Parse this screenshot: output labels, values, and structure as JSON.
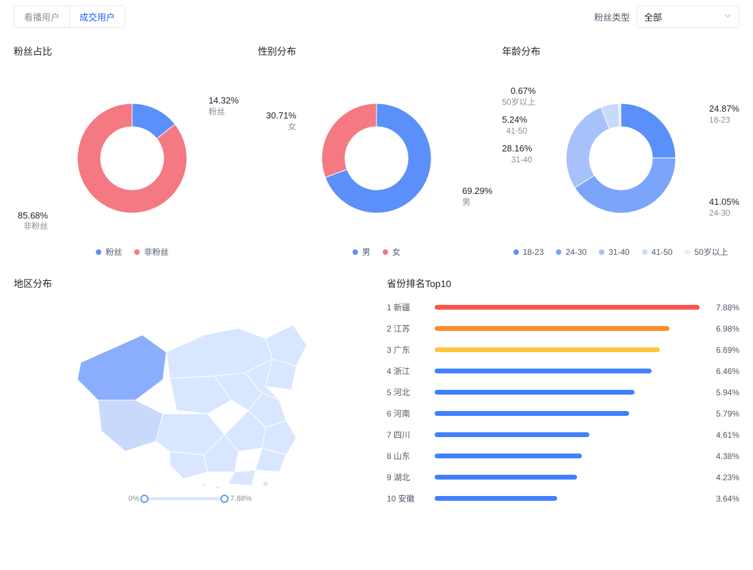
{
  "tabs": {
    "items": [
      "看播用户",
      "成交用户"
    ],
    "active_index": 1
  },
  "filter": {
    "label": "粉丝类型",
    "selected": "全部"
  },
  "fan_ratio": {
    "title": "粉丝占比",
    "inner": "#ffffff",
    "slices": [
      {
        "label": "粉丝",
        "pct": 14.32,
        "color": "#5b8ff9"
      },
      {
        "label": "非粉丝",
        "pct": 85.68,
        "color": "#f47983"
      }
    ],
    "legend": [
      "粉丝",
      "非粉丝"
    ],
    "legend_colors": [
      "#5b8ff9",
      "#f47983"
    ]
  },
  "gender": {
    "title": "性别分布",
    "slices": [
      {
        "label": "男",
        "pct": 69.29,
        "color": "#5b8ff9"
      },
      {
        "label": "女",
        "pct": 30.71,
        "color": "#f47983"
      }
    ],
    "legend": [
      "男",
      "女"
    ],
    "legend_colors": [
      "#5b8ff9",
      "#f47983"
    ]
  },
  "age": {
    "title": "年龄分布",
    "slices": [
      {
        "label": "18-23",
        "pct": 24.87,
        "color": "#5b8ff9"
      },
      {
        "label": "24-30",
        "pct": 41.05,
        "color": "#7ba4fa"
      },
      {
        "label": "31-40",
        "pct": 28.16,
        "color": "#a7c1fb"
      },
      {
        "label": "41-50",
        "pct": 5.24,
        "color": "#c9d9fc"
      },
      {
        "label": "50岁以上",
        "pct": 0.67,
        "color": "#e6edfe"
      }
    ],
    "legend": [
      "18-23",
      "24-30",
      "31-40",
      "41-50",
      "50岁以上"
    ],
    "legend_colors": [
      "#5b8ff9",
      "#7ba4fa",
      "#a7c1fb",
      "#c9d9fc",
      "#e6edfe"
    ]
  },
  "region": {
    "title": "地区分布",
    "scale_min": "0%",
    "scale_max": "7.88%",
    "map_fill_base": "#d9e6ff",
    "map_fill_high": "#8aaefb",
    "map_stroke": "#ffffff"
  },
  "ranking": {
    "title": "省份排名Top10",
    "max_pct": 7.88,
    "bar_colors": [
      "#f5554a",
      "#ff8b27",
      "#ffc53d",
      "#4080ff",
      "#4080ff",
      "#4080ff",
      "#4080ff",
      "#4080ff",
      "#4080ff",
      "#4080ff"
    ],
    "rows": [
      {
        "rank": 1,
        "name": "新疆",
        "pct": 7.88
      },
      {
        "rank": 2,
        "name": "江苏",
        "pct": 6.98
      },
      {
        "rank": 3,
        "name": "广东",
        "pct": 6.69
      },
      {
        "rank": 4,
        "name": "浙江",
        "pct": 6.46
      },
      {
        "rank": 5,
        "name": "河北",
        "pct": 5.94
      },
      {
        "rank": 6,
        "name": "河南",
        "pct": 5.79
      },
      {
        "rank": 7,
        "name": "四川",
        "pct": 4.61
      },
      {
        "rank": 8,
        "name": "山东",
        "pct": 4.38
      },
      {
        "rank": 9,
        "name": "湖北",
        "pct": 4.23
      },
      {
        "rank": 10,
        "name": "安徽",
        "pct": 3.64
      }
    ]
  }
}
